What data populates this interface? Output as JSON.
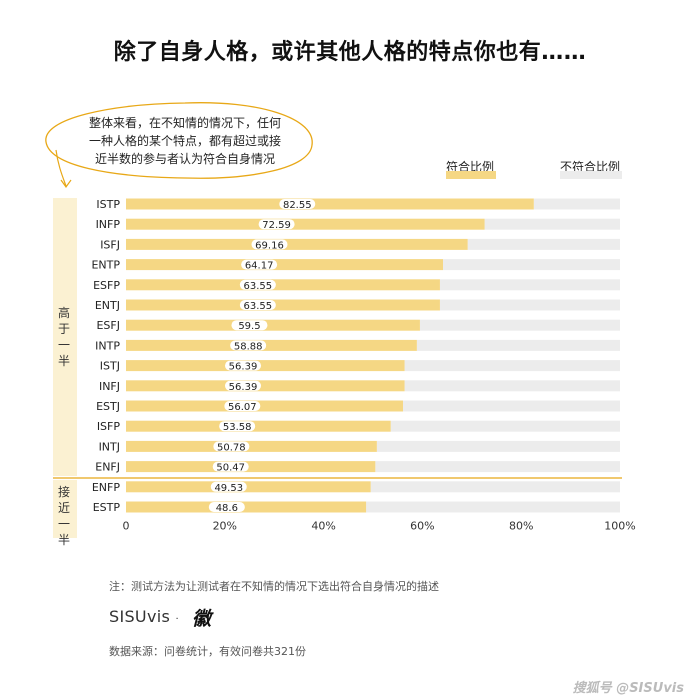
{
  "title": "除了自身人格，或许其他人格的特点你也有……",
  "callout": {
    "lines": [
      "整体来看，在不知情的情况下，任何",
      "一种人格的某个特点，都有超过或接",
      "近半数的参与者认为符合自身情况"
    ]
  },
  "legend": {
    "match": "符合比例",
    "no_match": "不符合比例"
  },
  "groups": {
    "high": "高于一半",
    "near": "接近一半"
  },
  "colors": {
    "match": "#f5d784",
    "no_match": "#ececec",
    "accent": "#e8a817",
    "label_bg": "#ffffff"
  },
  "chart_data": {
    "type": "bar",
    "orientation": "horizontal",
    "stacked": true,
    "categories": [
      "ISTP",
      "INFP",
      "ISFJ",
      "ENTP",
      "ESFP",
      "ENTJ",
      "ESFJ",
      "INTP",
      "ISTJ",
      "INFJ",
      "ESTJ",
      "ISFP",
      "INTJ",
      "ENFJ",
      "ENFP",
      "ESTP"
    ],
    "series": [
      {
        "name": "符合比例",
        "values": [
          82.55,
          72.59,
          69.16,
          64.17,
          63.55,
          63.55,
          59.5,
          58.88,
          56.39,
          56.39,
          56.07,
          53.58,
          50.78,
          50.47,
          49.53,
          48.6
        ]
      },
      {
        "name": "不符合比例",
        "values": [
          17.45,
          27.41,
          30.84,
          35.83,
          36.45,
          36.45,
          40.5,
          41.12,
          43.61,
          43.61,
          43.93,
          46.42,
          49.22,
          49.53,
          50.47,
          51.4
        ]
      }
    ],
    "value_labels": [
      "82.55",
      "72.59",
      "69.16",
      "64.17",
      "63.55",
      "63.55",
      "59.5",
      "58.88",
      "56.39",
      "56.39",
      "56.07",
      "53.58",
      "50.78",
      "50.47",
      "49.53",
      "48.6"
    ],
    "group_of_category": [
      "high",
      "high",
      "high",
      "high",
      "high",
      "high",
      "high",
      "high",
      "high",
      "high",
      "high",
      "high",
      "high",
      "high",
      "near",
      "near"
    ],
    "xlim": [
      0,
      100
    ],
    "xticks": [
      "0",
      "20%",
      "40%",
      "60%",
      "80%",
      "100%"
    ],
    "xtick_values": [
      0,
      20,
      40,
      60,
      80,
      100
    ],
    "xlabel": "",
    "ylabel": "",
    "grid": false
  },
  "footer": {
    "note": "注：测试方法为让测试者在不知情的情况下选出符合自身情况的描述",
    "brand": "SISUvis",
    "brand_sep": "·",
    "brand_mark": "徽",
    "source": "数据来源：问卷统计，有效问卷共321份",
    "watermark": "搜狐号 @SISUvis"
  }
}
